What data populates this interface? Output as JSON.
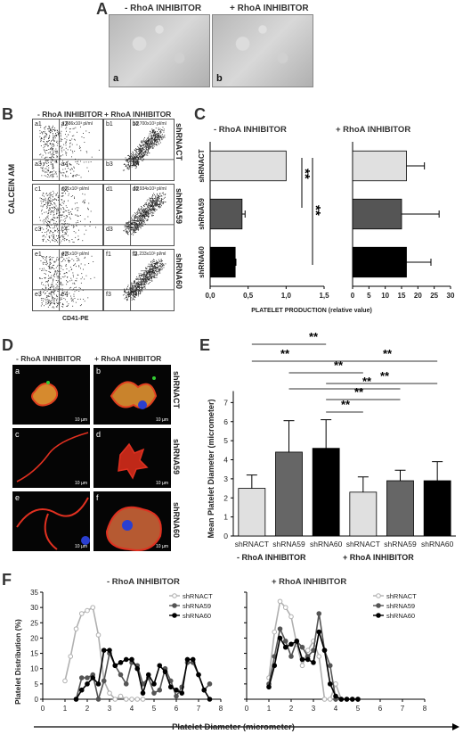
{
  "panels": {
    "A": "A",
    "B": "B",
    "C": "C",
    "D": "D",
    "E": "E",
    "F": "F"
  },
  "conditions": {
    "minus": "- RhoA INHIBITOR",
    "plus": "+ RhoA INHIBITOR"
  },
  "panelA": {
    "sub_a": "a",
    "sub_b": "b"
  },
  "shrna": {
    "ct": "shRNACT",
    "r59": "shRNA59",
    "r60": "shRNA60"
  },
  "panelB": {
    "ylabel": "CALCEIN AM",
    "xlabel": "CD41-PE",
    "quadrants": [
      [
        "a1",
        "a2",
        "a3",
        "a4"
      ],
      [
        "b1",
        "b2",
        "b3",
        "b4"
      ],
      [
        "c1",
        "c2",
        "c3",
        "c4"
      ],
      [
        "d1",
        "d2",
        "d3",
        "d4"
      ],
      [
        "e1",
        "e2",
        "e3",
        "e4"
      ],
      [
        "f1",
        "f2",
        "f3",
        "f4"
      ]
    ],
    "counts": [
      "7,686x10³ pl/ml",
      "18,700x10³ pl/ml",
      "601x10³ pl/ml",
      "18,934x10³ pl/ml",
      "271x10³ pl/ml",
      "11,233x10³ pl/ml"
    ],
    "ticks": [
      "10⁰",
      "10¹",
      "10²",
      "10³",
      "10⁴"
    ]
  },
  "panelC": {
    "xlabel": "PLATELET PRODUCTION (relative value)",
    "sig": "**",
    "left_ticks": [
      "0,0",
      "0,5",
      "1,0",
      "1,5"
    ],
    "right_ticks": [
      "0",
      "5",
      "10",
      "15",
      "20",
      "25",
      "30"
    ]
  },
  "panelD": {
    "subs": [
      "a",
      "b",
      "c",
      "d",
      "e",
      "f"
    ],
    "scale": "10 µm"
  },
  "panelE": {
    "ylabel": "Mean Platelet Diameter (micrometer)",
    "sig": "**"
  },
  "panelF": {
    "ylabel": "Platelet Distribution (%)",
    "xlabel": "Platelet Diameter (micrometer)"
  },
  "chart_data": [
    {
      "type": "bar",
      "title": "- RhoA INHIBITOR",
      "orientation": "horizontal",
      "categories": [
        "shRNACT",
        "shRNA59",
        "shRNA60"
      ],
      "values": [
        1.0,
        0.42,
        0.33
      ],
      "errors": [
        0,
        0.04,
        0.01
      ],
      "colors": [
        "#e0e0e0",
        "#555555",
        "#000000"
      ],
      "xlim": [
        0,
        1.5
      ],
      "xlabel": "PLATELET PRODUCTION (relative value)"
    },
    {
      "type": "bar",
      "title": "+ RhoA INHIBITOR",
      "orientation": "horizontal",
      "categories": [
        "shRNACT",
        "shRNA59",
        "shRNA60"
      ],
      "values": [
        16.5,
        15.0,
        16.5
      ],
      "errors": [
        5.5,
        11.5,
        7.5
      ],
      "colors": [
        "#e0e0e0",
        "#555555",
        "#000000"
      ],
      "xlim": [
        0,
        30
      ],
      "xlabel": "PLATELET PRODUCTION (relative value)"
    },
    {
      "type": "bar",
      "categories": [
        "shRNACT",
        "shRNA59",
        "shRNA60",
        "shRNACT",
        "shRNA59",
        "shRNA60"
      ],
      "groups": [
        "- RhoA INHIBITOR",
        "+ RhoA INHIBITOR"
      ],
      "values": [
        2.5,
        4.4,
        4.6,
        2.3,
        2.9,
        2.9
      ],
      "errors": [
        0.7,
        1.65,
        1.5,
        0.8,
        0.55,
        1.0
      ],
      "colors": [
        "#e0e0e0",
        "#666666",
        "#000000",
        "#e0e0e0",
        "#666666",
        "#000000"
      ],
      "ylim": [
        0,
        8
      ],
      "yticks": [
        0,
        1,
        2,
        3,
        4,
        5,
        6,
        7
      ],
      "ylabel": "Mean Platelet Diameter (micrometer)"
    },
    {
      "type": "line",
      "title": "- RhoA INHIBITOR",
      "ylabel": "Platelet Distribution (%)",
      "xlabel": "Platelet Diameter (micrometer)",
      "xlim": [
        0,
        8
      ],
      "ylim": [
        0,
        35
      ],
      "xticks": [
        0,
        1,
        2,
        3,
        4,
        5,
        6,
        7,
        8
      ],
      "yticks": [
        0,
        5,
        10,
        15,
        20,
        25,
        30,
        35
      ],
      "series": [
        {
          "name": "shRNACT",
          "color": "#b0b0b0",
          "x": [
            1.0,
            1.25,
            1.5,
            1.75,
            2.0,
            2.25,
            2.5,
            2.75,
            3.0,
            3.25,
            3.5,
            3.75,
            4.0,
            4.25,
            4.5
          ],
          "y": [
            6,
            14,
            23,
            28,
            29,
            30,
            21,
            6,
            2,
            0,
            1,
            0,
            0,
            0,
            0
          ]
        },
        {
          "name": "shRNA59",
          "color": "#555555",
          "x": [
            1.5,
            1.75,
            2.0,
            2.25,
            2.5,
            2.75,
            3.0,
            3.25,
            3.5,
            3.75,
            4.0,
            4.25,
            4.5,
            4.75,
            5.0,
            5.25,
            5.5,
            5.75,
            6.0,
            6.25,
            6.5,
            6.75,
            7.0,
            7.25,
            7.5
          ],
          "y": [
            0,
            7,
            7,
            8,
            0,
            6,
            15,
            11,
            8,
            5,
            12,
            11,
            5,
            7,
            2,
            3,
            10,
            6,
            1,
            4,
            12,
            12,
            8,
            3,
            5
          ]
        },
        {
          "name": "shRNA60",
          "color": "#000000",
          "x": [
            1.5,
            1.75,
            2.0,
            2.25,
            2.5,
            2.75,
            3.0,
            3.25,
            3.5,
            3.75,
            4.0,
            4.25,
            4.5,
            4.75,
            5.0,
            5.25,
            5.5,
            5.75,
            6.0,
            6.25,
            6.5,
            6.75,
            7.0,
            7.25,
            7.5
          ],
          "y": [
            0,
            3,
            5,
            7,
            5,
            16,
            16,
            11,
            12,
            13,
            13,
            10,
            2,
            8,
            5,
            11,
            9,
            4,
            3,
            2,
            13,
            13,
            8,
            3,
            0
          ]
        }
      ]
    },
    {
      "type": "line",
      "title": "+ RhoA INHIBITOR",
      "ylabel": "Platelet Distribution (%)",
      "xlabel": "Platelet Diameter (micrometer)",
      "xlim": [
        0,
        8
      ],
      "ylim": [
        0,
        35
      ],
      "xticks": [
        0,
        1,
        2,
        3,
        4,
        5,
        6,
        7,
        8
      ],
      "yticks": [
        0,
        5,
        10,
        15,
        20,
        25,
        30,
        35
      ],
      "series": [
        {
          "name": "shRNACT",
          "color": "#b0b0b0",
          "x": [
            1.0,
            1.25,
            1.5,
            1.75,
            2.0,
            2.25,
            2.5,
            2.75,
            3.0,
            3.25,
            3.5,
            3.75,
            4.0,
            4.25,
            4.5,
            4.75,
            5.0
          ],
          "y": [
            7,
            22,
            32,
            30,
            27,
            18,
            11,
            16,
            19,
            14,
            0,
            0,
            5,
            0,
            0,
            0,
            0
          ]
        },
        {
          "name": "shRNA59",
          "color": "#555555",
          "x": [
            1.0,
            1.25,
            1.5,
            1.75,
            2.0,
            2.25,
            2.5,
            2.75,
            3.0,
            3.25,
            3.5,
            3.75,
            4.0,
            4.25,
            4.5,
            4.75,
            5.0
          ],
          "y": [
            5,
            14,
            23,
            19,
            14,
            19,
            17,
            14,
            16,
            28,
            16,
            11,
            0,
            0,
            0,
            0,
            0
          ]
        },
        {
          "name": "shRNA60",
          "color": "#000000",
          "x": [
            1.0,
            1.25,
            1.5,
            1.75,
            2.0,
            2.25,
            2.5,
            2.75,
            3.0,
            3.25,
            3.5,
            3.75,
            4.0,
            4.25,
            4.5,
            4.75,
            5.0
          ],
          "y": [
            4,
            11,
            20,
            17,
            18,
            19,
            13,
            13,
            12,
            22,
            16,
            5,
            1,
            0,
            0,
            0,
            0
          ]
        }
      ]
    }
  ]
}
